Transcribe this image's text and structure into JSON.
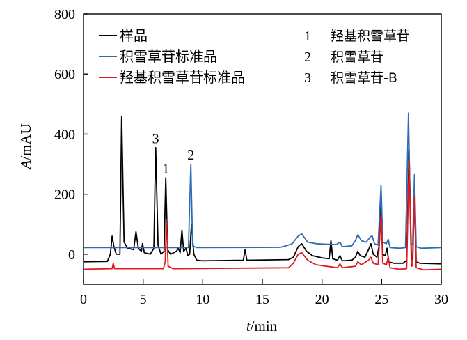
{
  "chart_data": {
    "type": "line",
    "title": "",
    "xlabel": {
      "italic": "t",
      "rest": "/min"
    },
    "ylabel": {
      "italic": "A",
      "rest": "/mAU"
    },
    "xlim": [
      0,
      30
    ],
    "ylim": [
      -100,
      800
    ],
    "xticks": [
      0,
      5,
      10,
      15,
      20,
      25,
      30
    ],
    "yticks": [
      0,
      200,
      400,
      600,
      800
    ],
    "grid": false,
    "legend_position": "top-left",
    "series": [
      {
        "name": "样品",
        "color": "#000000",
        "points": [
          [
            0.0,
            -25
          ],
          [
            2.0,
            -24
          ],
          [
            2.25,
            0
          ],
          [
            2.4,
            60
          ],
          [
            2.55,
            25
          ],
          [
            2.75,
            0
          ],
          [
            3.05,
            0
          ],
          [
            3.2,
            460
          ],
          [
            3.4,
            40
          ],
          [
            3.7,
            20
          ],
          [
            4.2,
            15
          ],
          [
            4.4,
            75
          ],
          [
            4.6,
            20
          ],
          [
            4.85,
            10
          ],
          [
            4.95,
            35
          ],
          [
            5.1,
            5
          ],
          [
            5.6,
            0
          ],
          [
            5.9,
            20
          ],
          [
            6.05,
            355
          ],
          [
            6.25,
            30
          ],
          [
            6.5,
            0
          ],
          [
            6.75,
            10
          ],
          [
            6.9,
            255
          ],
          [
            7.05,
            15
          ],
          [
            7.3,
            0
          ],
          [
            7.8,
            10
          ],
          [
            7.95,
            20
          ],
          [
            8.1,
            5
          ],
          [
            8.25,
            80
          ],
          [
            8.4,
            10
          ],
          [
            8.6,
            20
          ],
          [
            8.75,
            -5
          ],
          [
            8.9,
            0
          ],
          [
            9.05,
            100
          ],
          [
            9.25,
            0
          ],
          [
            9.5,
            -20
          ],
          [
            10.0,
            -22
          ],
          [
            13.4,
            -20
          ],
          [
            13.55,
            15
          ],
          [
            13.7,
            -20
          ],
          [
            17.2,
            -18
          ],
          [
            17.6,
            -10
          ],
          [
            18.0,
            25
          ],
          [
            18.3,
            35
          ],
          [
            18.7,
            10
          ],
          [
            19.2,
            -5
          ],
          [
            20.0,
            -12
          ],
          [
            20.6,
            -15
          ],
          [
            20.75,
            45
          ],
          [
            20.9,
            -15
          ],
          [
            21.3,
            -20
          ],
          [
            21.5,
            -5
          ],
          [
            21.7,
            -22
          ],
          [
            22.5,
            -20
          ],
          [
            22.8,
            -10
          ],
          [
            23.0,
            10
          ],
          [
            23.2,
            -5
          ],
          [
            23.6,
            -10
          ],
          [
            23.9,
            15
          ],
          [
            24.1,
            35
          ],
          [
            24.3,
            0
          ],
          [
            24.6,
            -10
          ],
          [
            24.8,
            30
          ],
          [
            24.95,
            160
          ],
          [
            25.1,
            0
          ],
          [
            25.3,
            -5
          ],
          [
            25.45,
            20
          ],
          [
            25.6,
            -25
          ],
          [
            26.0,
            -30
          ],
          [
            26.8,
            -30
          ],
          [
            27.1,
            -20
          ],
          [
            27.3,
            350
          ],
          [
            27.5,
            -20
          ],
          [
            27.6,
            -15
          ],
          [
            27.75,
            225
          ],
          [
            27.9,
            -25
          ],
          [
            28.2,
            -30
          ],
          [
            30.0,
            -32
          ]
        ]
      },
      {
        "name": "积雪草苷标准品",
        "color": "#2f6db2",
        "points": [
          [
            0.0,
            22
          ],
          [
            8.8,
            22
          ],
          [
            9.0,
            300
          ],
          [
            9.15,
            28
          ],
          [
            9.5,
            22
          ],
          [
            16.5,
            23
          ],
          [
            17.0,
            28
          ],
          [
            17.5,
            35
          ],
          [
            18.0,
            60
          ],
          [
            18.3,
            68
          ],
          [
            18.8,
            40
          ],
          [
            19.5,
            35
          ],
          [
            20.5,
            33
          ],
          [
            21.2,
            32
          ],
          [
            21.5,
            40
          ],
          [
            21.7,
            25
          ],
          [
            22.5,
            28
          ],
          [
            22.8,
            45
          ],
          [
            23.0,
            65
          ],
          [
            23.3,
            45
          ],
          [
            23.7,
            40
          ],
          [
            24.0,
            55
          ],
          [
            24.2,
            62
          ],
          [
            24.4,
            35
          ],
          [
            24.7,
            30
          ],
          [
            24.95,
            230
          ],
          [
            25.1,
            40
          ],
          [
            25.4,
            35
          ],
          [
            25.55,
            50
          ],
          [
            25.7,
            22
          ],
          [
            26.5,
            20
          ],
          [
            27.0,
            22
          ],
          [
            27.25,
            470
          ],
          [
            27.45,
            30
          ],
          [
            27.6,
            35
          ],
          [
            27.75,
            265
          ],
          [
            27.9,
            25
          ],
          [
            28.3,
            20
          ],
          [
            30.0,
            22
          ]
        ]
      },
      {
        "name": "羟基积雪草苷标准品",
        "color": "#e0181e",
        "points": [
          [
            0.0,
            -50
          ],
          [
            2.4,
            -48
          ],
          [
            2.5,
            -30
          ],
          [
            2.6,
            -48
          ],
          [
            6.7,
            -48
          ],
          [
            6.85,
            -25
          ],
          [
            6.95,
            115
          ],
          [
            7.1,
            -40
          ],
          [
            7.5,
            -48
          ],
          [
            17.2,
            -45
          ],
          [
            17.6,
            -30
          ],
          [
            18.0,
            0
          ],
          [
            18.3,
            5
          ],
          [
            18.8,
            -20
          ],
          [
            19.5,
            -35
          ],
          [
            21.3,
            -45
          ],
          [
            21.5,
            -32
          ],
          [
            21.7,
            -45
          ],
          [
            22.8,
            -40
          ],
          [
            23.0,
            -25
          ],
          [
            23.3,
            -35
          ],
          [
            23.9,
            -20
          ],
          [
            24.1,
            -10
          ],
          [
            24.3,
            -30
          ],
          [
            24.7,
            -35
          ],
          [
            24.95,
            130
          ],
          [
            25.1,
            -30
          ],
          [
            25.4,
            -35
          ],
          [
            25.55,
            -10
          ],
          [
            25.7,
            -45
          ],
          [
            26.5,
            -50
          ],
          [
            27.1,
            -48
          ],
          [
            27.3,
            310
          ],
          [
            27.5,
            -40
          ],
          [
            27.6,
            -38
          ],
          [
            27.75,
            190
          ],
          [
            27.9,
            -45
          ],
          [
            28.5,
            -52
          ],
          [
            30.0,
            -50
          ]
        ]
      }
    ],
    "peak_labels": [
      {
        "text": "3",
        "x": 6.05,
        "y": 370
      },
      {
        "text": "1",
        "x": 6.9,
        "y": 270
      },
      {
        "text": "2",
        "x": 9.0,
        "y": 315
      }
    ],
    "peak_key": [
      {
        "num": "1",
        "name": "羟基积雪草苷"
      },
      {
        "num": "2",
        "name": "积雪草苷"
      },
      {
        "num": "3",
        "name": "积雪草苷-B"
      }
    ]
  }
}
